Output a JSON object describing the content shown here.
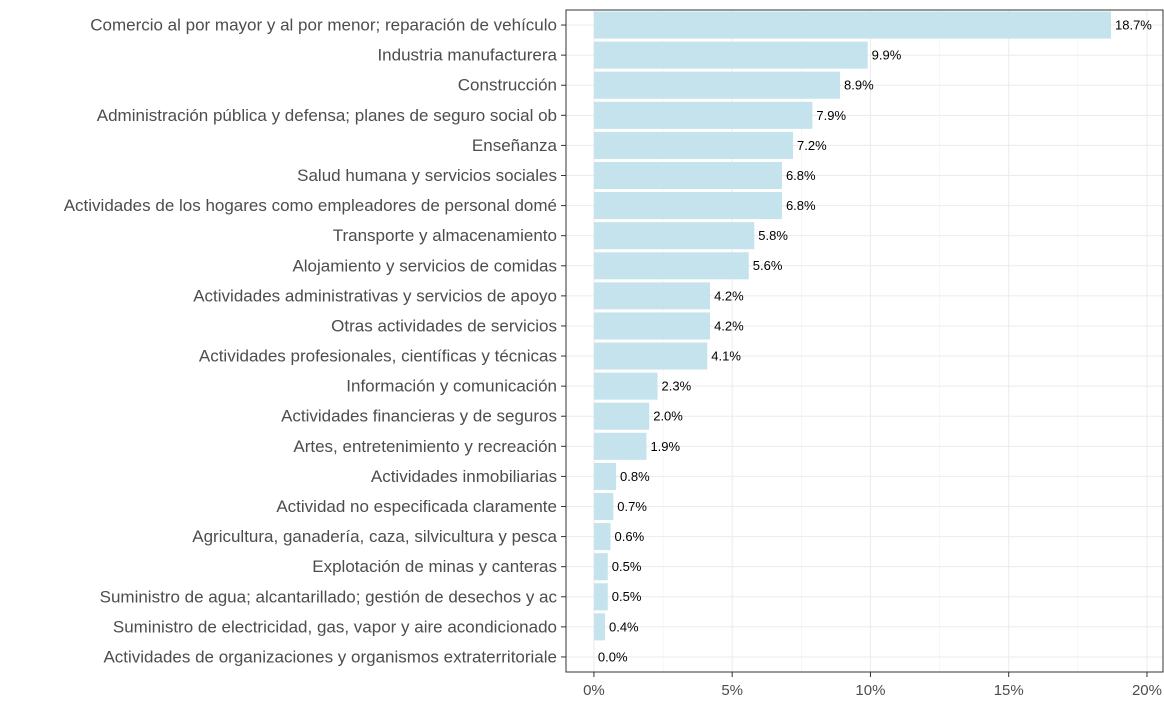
{
  "chart_data": {
    "type": "barh",
    "categories": [
      "Comercio al por mayor y al por menor; reparación de vehículo",
      "Industria manufacturera",
      "Construcción",
      "Administración pública y defensa; planes de seguro social ob",
      "Enseñanza",
      "Salud humana y servicios sociales",
      "Actividades de los hogares como empleadores de personal domé",
      "Transporte y almacenamiento",
      "Alojamiento y servicios de comidas",
      "Actividades administrativas y servicios de apoyo",
      "Otras actividades de servicios",
      "Actividades profesionales, científicas y técnicas",
      "Información y comunicación",
      "Actividades financieras y de seguros",
      "Artes, entretenimiento y recreación",
      "Actividades inmobiliarias",
      "Actividad no especificada claramente",
      "Agricultura, ganadería, caza, silvicultura y pesca",
      "Explotación de minas y canteras",
      "Suministro de agua; alcantarillado; gestión de desechos y ac",
      "Suministro de electricidad, gas, vapor y aire acondicionado",
      "Actividades de organizaciones y organismos extraterritoriale"
    ],
    "values": [
      18.7,
      9.9,
      8.9,
      7.9,
      7.2,
      6.8,
      6.8,
      5.8,
      5.6,
      4.2,
      4.2,
      4.1,
      2.3,
      2,
      1.9,
      0.8,
      0.7,
      0.6,
      0.5,
      0.5,
      0.4,
      0
    ],
    "value_labels": [
      "18.7%",
      "9.9%",
      "8.9%",
      "7.9%",
      "7.2%",
      "6.8%",
      "6.8%",
      "5.8%",
      "5.6%",
      "4.2%",
      "4.2%",
      "4.1%",
      "2.3%",
      "2.0%",
      "1.9%",
      "0.8%",
      "0.7%",
      "0.6%",
      "0.5%",
      "0.5%",
      "0.4%",
      "0.0%"
    ],
    "color": "#c5e3ed",
    "xlim": [
      -1.01,
      20.58
    ],
    "xticks": [
      {
        "value": 0,
        "label": "0%"
      },
      {
        "value": 5,
        "label": "5%"
      },
      {
        "value": 10,
        "label": "10%"
      },
      {
        "value": 15,
        "label": "15%"
      },
      {
        "value": 20,
        "label": "20%"
      }
    ],
    "grid": true
  }
}
